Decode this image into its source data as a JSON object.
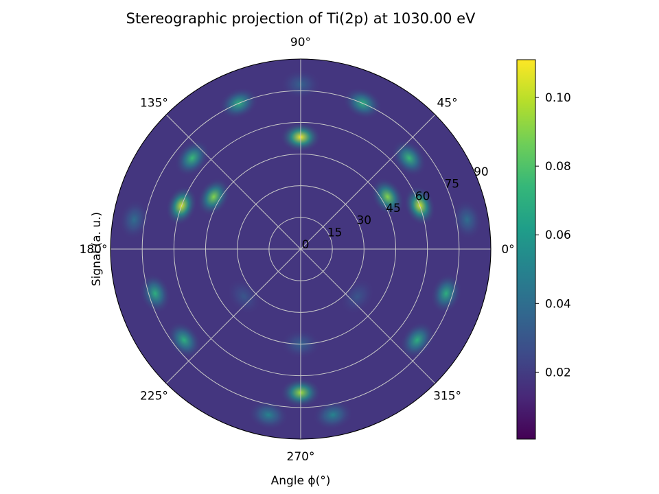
{
  "chart_data": {
    "type": "heatmap",
    "projection": "stereographic-polar",
    "title": "Stereographic projection of Ti(2p) at 1030.00 eV",
    "xlabel": "Angle ϕ(°)",
    "ylabel": "Signal (a. u.)",
    "angular_ticks": [
      {
        "angle": 0,
        "label": "0°"
      },
      {
        "angle": 45,
        "label": "45°"
      },
      {
        "angle": 90,
        "label": "90°"
      },
      {
        "angle": 135,
        "label": "135°"
      },
      {
        "angle": 180,
        "label": "180°"
      },
      {
        "angle": 225,
        "label": "225°"
      },
      {
        "angle": 270,
        "label": "270°"
      },
      {
        "angle": 315,
        "label": "315°"
      }
    ],
    "radial_ticks": [
      {
        "value": 0,
        "label": "0"
      },
      {
        "value": 15,
        "label": "15"
      },
      {
        "value": 30,
        "label": "30"
      },
      {
        "value": 45,
        "label": "45"
      },
      {
        "value": 60,
        "label": "60"
      },
      {
        "value": 75,
        "label": "75"
      },
      {
        "value": 90,
        "label": "90"
      }
    ],
    "theta_range": [
      0,
      90
    ],
    "phi_range": [
      0,
      360
    ],
    "grid": true,
    "colormap": "viridis",
    "colorbar": {
      "range": [
        0.0005,
        0.111
      ],
      "ticks": [
        {
          "value": 0.02,
          "label": "0.02"
        },
        {
          "value": 0.04,
          "label": "0.04"
        },
        {
          "value": 0.06,
          "label": "0.06"
        },
        {
          "value": 0.08,
          "label": "0.08"
        },
        {
          "value": 0.1,
          "label": "0.10"
        }
      ]
    },
    "background_level": 0.018,
    "peaks": [
      {
        "phi": 90,
        "theta": 53,
        "value": 0.11
      },
      {
        "phi": 20,
        "theta": 60,
        "value": 0.105
      },
      {
        "phi": 160,
        "theta": 60,
        "value": 0.105
      },
      {
        "phi": 270,
        "theta": 68,
        "value": 0.095
      },
      {
        "phi": 31,
        "theta": 48,
        "value": 0.09
      },
      {
        "phi": 149,
        "theta": 48,
        "value": 0.09
      },
      {
        "phi": 67,
        "theta": 75,
        "value": 0.07
      },
      {
        "phi": 113,
        "theta": 75,
        "value": 0.07
      },
      {
        "phi": 40,
        "theta": 67,
        "value": 0.075
      },
      {
        "phi": 140,
        "theta": 67,
        "value": 0.075
      },
      {
        "phi": 343,
        "theta": 72,
        "value": 0.07
      },
      {
        "phi": 197,
        "theta": 72,
        "value": 0.07
      },
      {
        "phi": 322,
        "theta": 70,
        "value": 0.07
      },
      {
        "phi": 218,
        "theta": 70,
        "value": 0.07
      },
      {
        "phi": 281,
        "theta": 80,
        "value": 0.05
      },
      {
        "phi": 259,
        "theta": 80,
        "value": 0.05
      },
      {
        "phi": 10,
        "theta": 80,
        "value": 0.04
      },
      {
        "phi": 170,
        "theta": 80,
        "value": 0.04
      },
      {
        "phi": 90,
        "theta": 78,
        "value": 0.035
      },
      {
        "phi": 270,
        "theta": 45,
        "value": 0.035
      },
      {
        "phi": 320,
        "theta": 35,
        "value": 0.03
      },
      {
        "phi": 220,
        "theta": 35,
        "value": 0.03
      }
    ],
    "colors": {
      "grid": "#c8c8c8",
      "border": "#000000",
      "cmap_stops": [
        "#440154",
        "#482878",
        "#3e4a89",
        "#31688e",
        "#26828e",
        "#1f9e89",
        "#35b779",
        "#6ece58",
        "#b5de2b",
        "#fde725"
      ]
    }
  }
}
